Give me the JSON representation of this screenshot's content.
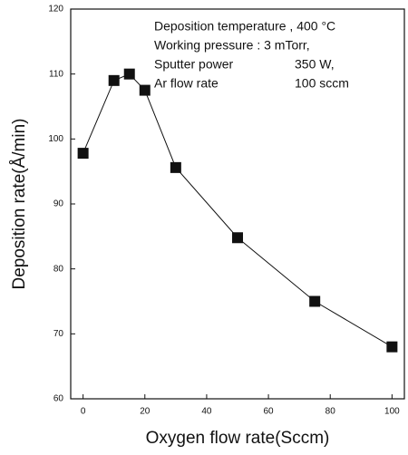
{
  "chart_data": {
    "type": "line",
    "x_label": "Oxygen flow rate(Sccm)",
    "y_label": "Deposition rate(Å/min)",
    "annotations": [
      [
        "Deposition temperature , 400 °C"
      ],
      [
        "Working pressure : 3 mTorr,"
      ],
      [
        "Sputter power",
        "350 W,"
      ],
      [
        "Ar flow rate",
        "100 sccm"
      ]
    ],
    "x": [
      0,
      10,
      15,
      20,
      30,
      50,
      75,
      100
    ],
    "series": [
      {
        "color": "#111111",
        "values": [
          97.8,
          109,
          110,
          107.5,
          95.6,
          84.8,
          75,
          68
        ]
      }
    ],
    "xlim": [
      -4,
      104
    ],
    "xticks": [
      0,
      20,
      40,
      60,
      80,
      100
    ],
    "ylim": [
      60,
      120
    ],
    "yticks": [
      60,
      70,
      80,
      90,
      100,
      110,
      120
    ]
  }
}
